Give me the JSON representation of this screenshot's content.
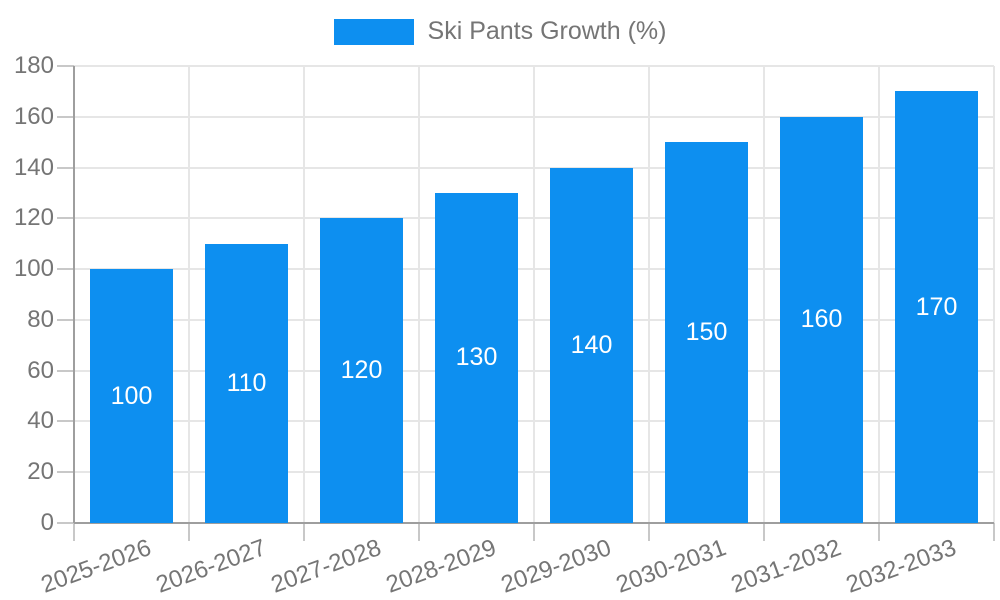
{
  "legend": {
    "label": "Ski Pants Growth (%)"
  },
  "colors": {
    "bar": "#0d8ff0",
    "grid": "#e6e6e6",
    "axis_line": "#9e9e9e",
    "tick": "#c8c8c8",
    "axis_text": "#757575",
    "value_label": "#ffffff",
    "background": "#ffffff"
  },
  "chart_data": {
    "type": "bar",
    "title": "Ski Pants Growth (%)",
    "categories": [
      "2025-2026",
      "2026-2027",
      "2027-2028",
      "2028-2029",
      "2029-2030",
      "2030-2031",
      "2031-2032",
      "2032-2033"
    ],
    "values": [
      100,
      110,
      120,
      130,
      140,
      150,
      160,
      170
    ],
    "xlabel": "",
    "ylabel": "",
    "ylim": [
      0,
      180
    ],
    "ytick_step": 20,
    "yticks": [
      0,
      20,
      40,
      60,
      80,
      100,
      120,
      140,
      160,
      180
    ],
    "grid": "both",
    "legend_position": "top",
    "value_labels": "inside-center",
    "x_label_rotation_deg": -20
  }
}
